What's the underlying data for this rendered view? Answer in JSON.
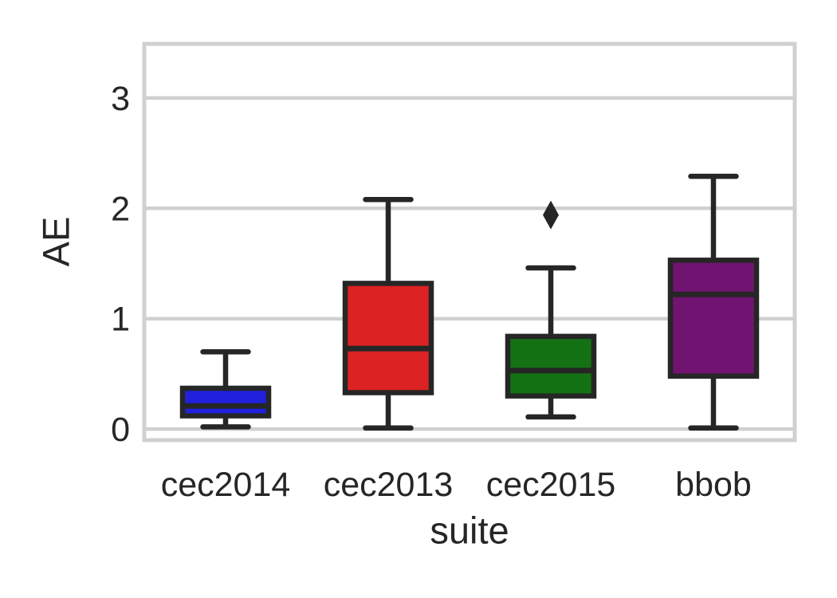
{
  "chart_data": {
    "type": "box",
    "title": "",
    "xlabel": "suite",
    "ylabel": "AE",
    "categories": [
      "cec2014",
      "cec2013",
      "cec2015",
      "bbob"
    ],
    "yticks": [
      "0",
      "1",
      "2",
      "3"
    ],
    "ytick_values": [
      0,
      1,
      2,
      3
    ],
    "ylim": [
      -0.1,
      3.49
    ],
    "grid": "horizontal",
    "legend": "none",
    "series": [
      {
        "label": "cec2014",
        "color": "#2020DD",
        "whisker_low": 0.02,
        "q1": 0.12,
        "median": 0.21,
        "q3": 0.37,
        "whisker_high": 0.7,
        "outliers": []
      },
      {
        "label": "cec2013",
        "color": "#DC2222",
        "whisker_low": 0.01,
        "q1": 0.33,
        "median": 0.73,
        "q3": 1.32,
        "whisker_high": 2.08,
        "outliers": []
      },
      {
        "label": "cec2015",
        "color": "#147114",
        "whisker_low": 0.11,
        "q1": 0.3,
        "median": 0.53,
        "q3": 0.84,
        "whisker_high": 1.46,
        "outliers": [
          1.94
        ]
      },
      {
        "label": "bbob",
        "color": "#711471",
        "whisker_low": 0.01,
        "q1": 0.48,
        "median": 1.22,
        "q3": 1.53,
        "whisker_high": 2.29,
        "outliers": []
      }
    ],
    "style": {
      "edge_color": "#262626",
      "grid_color": "#d0d0d0",
      "background": "#ffffff",
      "text_color": "#262626"
    }
  }
}
